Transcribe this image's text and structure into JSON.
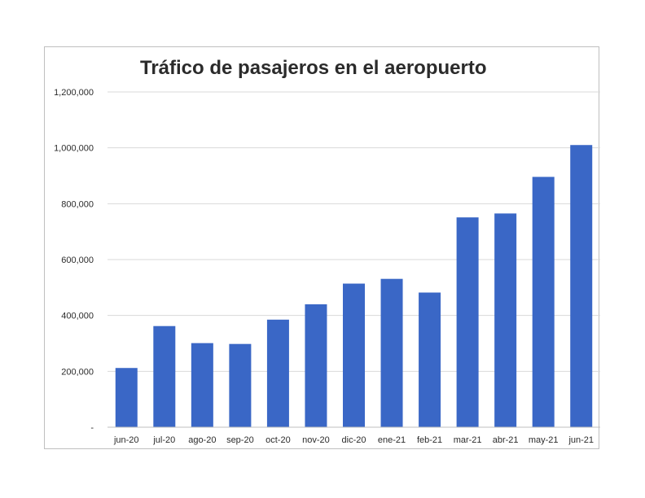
{
  "chart_data": {
    "type": "bar",
    "title": "Tráfico de pasajeros en el aeropuerto",
    "xlabel": "",
    "ylabel": "",
    "categories": [
      "jun-20",
      "jul-20",
      "ago-20",
      "sep-20",
      "oct-20",
      "nov-20",
      "dic-20",
      "ene-21",
      "feb-21",
      "mar-21",
      "abr-21",
      "may-21",
      "jun-21"
    ],
    "values": [
      212000,
      362000,
      301000,
      298000,
      385000,
      440000,
      514000,
      531000,
      482000,
      751000,
      765000,
      896000,
      1010000
    ],
    "ylim": [
      0,
      1200000
    ],
    "yticks": [
      0,
      200000,
      400000,
      600000,
      800000,
      1000000,
      1200000
    ],
    "ytick_labels": [
      "-",
      "200,000",
      "400,000",
      "600,000",
      "800,000",
      "1,000,000",
      "1,200,000"
    ],
    "grid": true,
    "legend": "none",
    "bar_color": "#3A67C6",
    "grid_color": "#d9d9d9"
  }
}
